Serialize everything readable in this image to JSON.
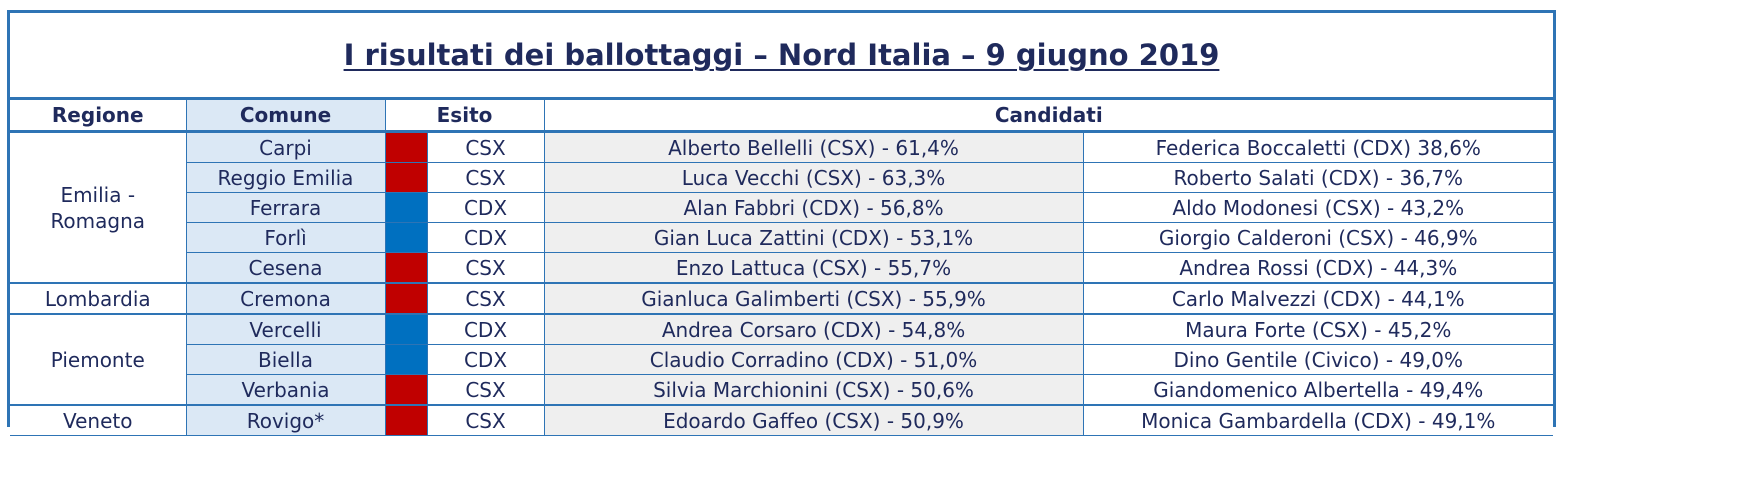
{
  "title": "I risultati dei ballottaggi – Nord Italia – 9 giugno 2019",
  "colors": {
    "CSX": "#c00000",
    "CDX": "#0070c0",
    "border": "#2e74b5",
    "text": "#1f2a5c"
  },
  "headers": {
    "regione": "Regione",
    "comune": "Comune",
    "esito": "Esito",
    "candidati": "Candidati"
  },
  "regions": [
    {
      "name": "Emilia -\nRomagna",
      "rows": [
        {
          "comune": "Carpi",
          "esito": "CSX",
          "c1": "Alberto Bellelli (CSX) - 61,4%",
          "c2": "Federica Boccaletti (CDX) 38,6%"
        },
        {
          "comune": "Reggio Emilia",
          "esito": "CSX",
          "c1": "Luca Vecchi (CSX) - 63,3%",
          "c2": "Roberto Salati (CDX) - 36,7%"
        },
        {
          "comune": "Ferrara",
          "esito": "CDX",
          "c1": "Alan Fabbri (CDX) - 56,8%",
          "c2": "Aldo Modonesi (CSX) - 43,2%"
        },
        {
          "comune": "Forlì",
          "esito": "CDX",
          "c1": "Gian Luca Zattini (CDX) - 53,1%",
          "c2": "Giorgio Calderoni (CSX) - 46,9%"
        },
        {
          "comune": "Cesena",
          "esito": "CSX",
          "c1": "Enzo Lattuca (CSX) - 55,7%",
          "c2": "Andrea Rossi (CDX) - 44,3%"
        }
      ]
    },
    {
      "name": "Lombardia",
      "rows": [
        {
          "comune": "Cremona",
          "esito": "CSX",
          "c1": "Gianluca Galimberti (CSX) - 55,9%",
          "c2": "Carlo Malvezzi (CDX) - 44,1%"
        }
      ]
    },
    {
      "name": "Piemonte",
      "rows": [
        {
          "comune": "Vercelli",
          "esito": "CDX",
          "c1": "Andrea Corsaro (CDX) - 54,8%",
          "c2": "Maura Forte (CSX) - 45,2%"
        },
        {
          "comune": "Biella",
          "esito": "CDX",
          "c1": "Claudio Corradino (CDX) - 51,0%",
          "c2": "Dino Gentile (Civico) - 49,0%"
        },
        {
          "comune": "Verbania",
          "esito": "CSX",
          "c1": "Silvia Marchionini (CSX) - 50,6%",
          "c2": "Giandomenico Albertella - 49,4%"
        }
      ]
    },
    {
      "name": "Veneto",
      "rows": [
        {
          "comune": "Rovigo*",
          "esito": "CSX",
          "c1": "Edoardo Gaffeo (CSX) - 50,9%",
          "c2": "Monica Gambardella (CDX) - 49,1%"
        }
      ]
    }
  ]
}
